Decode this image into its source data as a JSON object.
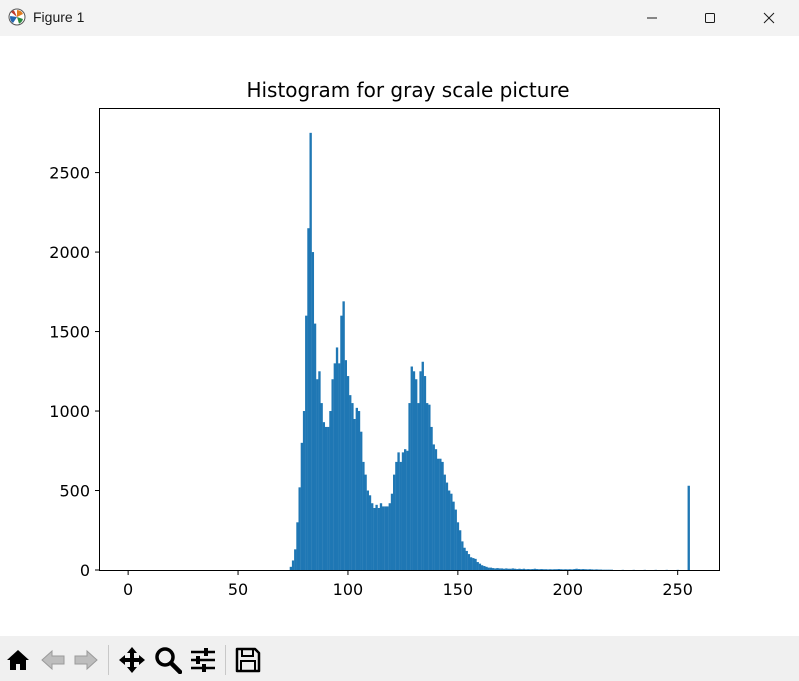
{
  "window": {
    "title": "Figure 1"
  },
  "toolbar": {
    "buttons": [
      {
        "name": "home-icon",
        "label": "Home"
      },
      {
        "name": "back-icon",
        "label": "Back"
      },
      {
        "name": "forward-icon",
        "label": "Forward"
      },
      {
        "name": "pan-icon",
        "label": "Pan"
      },
      {
        "name": "zoom-icon",
        "label": "Zoom"
      },
      {
        "name": "configure-subplots-icon",
        "label": "Subplots"
      },
      {
        "name": "save-icon",
        "label": "Save"
      }
    ]
  },
  "colors": {
    "bar": "#1f77b4",
    "titlebar": "#f3f3f3",
    "toolbar": "#f0f0f0"
  },
  "chart_data": {
    "type": "bar",
    "title": "Histogram for gray scale picture",
    "xlabel": "",
    "ylabel": "",
    "xlim": [
      -12.8,
      268.8
    ],
    "ylim": [
      0,
      2900
    ],
    "xticks": [
      0,
      50,
      100,
      150,
      200,
      250
    ],
    "yticks": [
      0,
      500,
      1000,
      1500,
      2000,
      2500
    ],
    "grid": false,
    "bin_width": 1,
    "bins": [
      [
        74,
        20
      ],
      [
        75,
        60
      ],
      [
        76,
        130
      ],
      [
        77,
        300
      ],
      [
        78,
        520
      ],
      [
        79,
        800
      ],
      [
        80,
        1000
      ],
      [
        81,
        1600
      ],
      [
        82,
        2150
      ],
      [
        83,
        2750
      ],
      [
        84,
        2000
      ],
      [
        85,
        1550
      ],
      [
        86,
        1200
      ],
      [
        87,
        1250
      ],
      [
        88,
        1050
      ],
      [
        89,
        930
      ],
      [
        90,
        900
      ],
      [
        91,
        900
      ],
      [
        92,
        1000
      ],
      [
        93,
        1200
      ],
      [
        94,
        1300
      ],
      [
        95,
        1400
      ],
      [
        96,
        1300
      ],
      [
        97,
        1600
      ],
      [
        98,
        1690
      ],
      [
        99,
        1320
      ],
      [
        100,
        1220
      ],
      [
        101,
        1100
      ],
      [
        102,
        1050
      ],
      [
        103,
        950
      ],
      [
        104,
        1020
      ],
      [
        105,
        1000
      ],
      [
        106,
        870
      ],
      [
        107,
        680
      ],
      [
        108,
        600
      ],
      [
        109,
        500
      ],
      [
        110,
        470
      ],
      [
        111,
        420
      ],
      [
        112,
        390
      ],
      [
        113,
        410
      ],
      [
        114,
        390
      ],
      [
        115,
        420
      ],
      [
        116,
        400
      ],
      [
        117,
        400
      ],
      [
        118,
        400
      ],
      [
        119,
        420
      ],
      [
        120,
        480
      ],
      [
        121,
        600
      ],
      [
        122,
        680
      ],
      [
        123,
        740
      ],
      [
        124,
        680
      ],
      [
        125,
        740
      ],
      [
        126,
        760
      ],
      [
        127,
        750
      ],
      [
        128,
        1050
      ],
      [
        129,
        1280
      ],
      [
        130,
        1250
      ],
      [
        131,
        1200
      ],
      [
        132,
        1050
      ],
      [
        133,
        1250
      ],
      [
        134,
        1310
      ],
      [
        135,
        1220
      ],
      [
        136,
        1050
      ],
      [
        137,
        1040
      ],
      [
        138,
        900
      ],
      [
        139,
        790
      ],
      [
        140,
        760
      ],
      [
        141,
        700
      ],
      [
        142,
        700
      ],
      [
        143,
        680
      ],
      [
        144,
        600
      ],
      [
        145,
        550
      ],
      [
        146,
        500
      ],
      [
        147,
        480
      ],
      [
        148,
        430
      ],
      [
        149,
        380
      ],
      [
        150,
        300
      ],
      [
        151,
        250
      ],
      [
        152,
        180
      ],
      [
        153,
        140
      ],
      [
        154,
        120
      ],
      [
        155,
        100
      ],
      [
        156,
        80
      ],
      [
        157,
        75
      ],
      [
        158,
        70
      ],
      [
        159,
        50
      ],
      [
        160,
        40
      ],
      [
        161,
        30
      ],
      [
        162,
        25
      ],
      [
        163,
        20
      ],
      [
        164,
        15
      ],
      [
        165,
        15
      ],
      [
        166,
        12
      ],
      [
        167,
        10
      ],
      [
        168,
        12
      ],
      [
        169,
        10
      ],
      [
        170,
        10
      ],
      [
        171,
        8
      ],
      [
        172,
        10
      ],
      [
        173,
        8
      ],
      [
        174,
        8
      ],
      [
        175,
        10
      ],
      [
        176,
        8
      ],
      [
        177,
        6
      ],
      [
        178,
        8
      ],
      [
        179,
        6
      ],
      [
        180,
        8
      ],
      [
        181,
        5
      ],
      [
        182,
        6
      ],
      [
        183,
        5
      ],
      [
        184,
        6
      ],
      [
        185,
        8
      ],
      [
        186,
        6
      ],
      [
        187,
        5
      ],
      [
        188,
        6
      ],
      [
        189,
        5
      ],
      [
        190,
        5
      ],
      [
        191,
        4
      ],
      [
        192,
        5
      ],
      [
        193,
        4
      ],
      [
        194,
        5
      ],
      [
        195,
        5
      ],
      [
        196,
        6
      ],
      [
        197,
        5
      ],
      [
        198,
        4
      ],
      [
        199,
        5
      ],
      [
        200,
        4
      ],
      [
        201,
        5
      ],
      [
        202,
        4
      ],
      [
        203,
        6
      ],
      [
        204,
        8
      ],
      [
        205,
        6
      ],
      [
        206,
        5
      ],
      [
        207,
        6
      ],
      [
        208,
        5
      ],
      [
        209,
        4
      ],
      [
        210,
        5
      ],
      [
        211,
        4
      ],
      [
        212,
        3
      ],
      [
        213,
        4
      ],
      [
        214,
        3
      ],
      [
        215,
        3
      ],
      [
        216,
        2
      ],
      [
        217,
        2
      ],
      [
        218,
        2
      ],
      [
        219,
        2
      ],
      [
        220,
        2
      ],
      [
        225,
        1
      ],
      [
        230,
        1
      ],
      [
        235,
        1
      ],
      [
        240,
        1
      ],
      [
        245,
        1
      ],
      [
        250,
        1
      ],
      [
        255,
        530
      ]
    ]
  }
}
